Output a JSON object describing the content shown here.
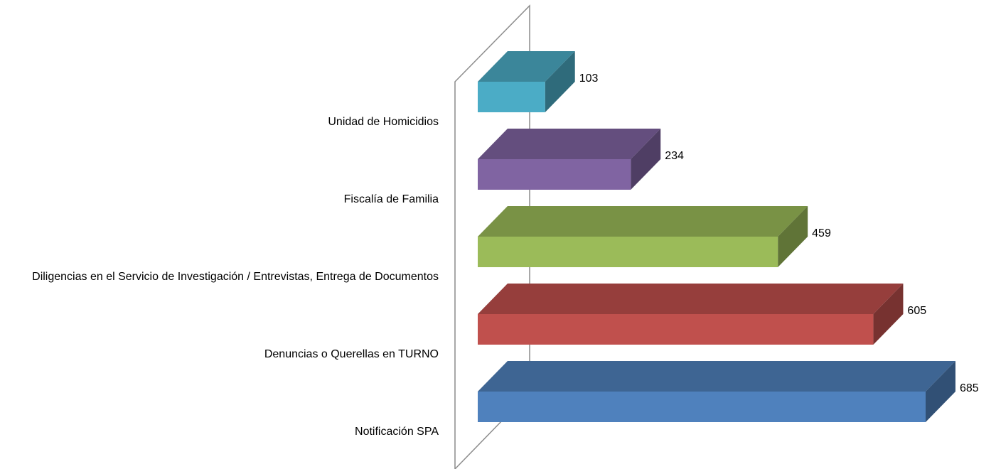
{
  "chart_data": {
    "type": "bar3d_horizontal",
    "categories": [
      "Unidad de Homicidios",
      "Fiscalía de Familia",
      "Diligencias en el Servicio de Investigación / Entrevistas, Entrega de Documentos",
      "Denuncias o Querellas en TURNO",
      "Notificación SPA"
    ],
    "values": [
      103,
      234,
      459,
      605,
      685
    ],
    "colors": [
      "#4bacc6",
      "#8064a2",
      "#9bbb59",
      "#c0504d",
      "#4f81bd"
    ]
  }
}
